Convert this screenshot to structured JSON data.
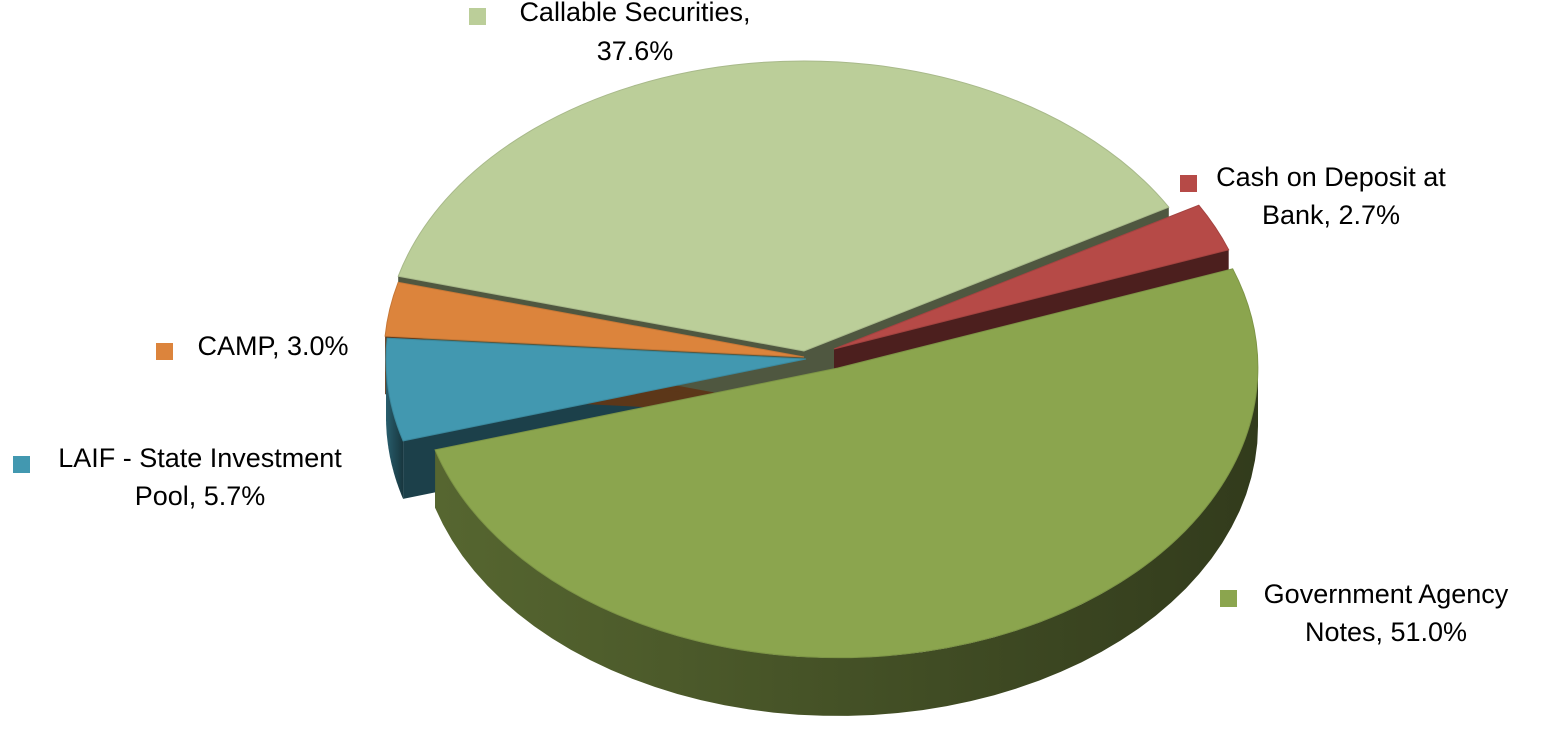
{
  "chart_data": {
    "type": "pie",
    "title": "",
    "slices": [
      {
        "label": "Government Agency Notes",
        "value": 51.0,
        "value_text": "51.0%",
        "color": "#8BA54E",
        "label_lines": [
          "Government Agency",
          "Notes, 51.0%"
        ]
      },
      {
        "label": "LAIF - State Investment Pool",
        "value": 5.7,
        "value_text": "5.7%",
        "color": "#4298B0",
        "label_lines": [
          "LAIF - State Investment",
          "Pool, 5.7%"
        ]
      },
      {
        "label": "CAMP",
        "value": 3.0,
        "value_text": "3.0%",
        "color": "#DC843C",
        "label_lines": [
          "CAMP, 3.0%"
        ]
      },
      {
        "label": "Callable Securities",
        "value": 37.6,
        "value_text": "37.6%",
        "color": "#BBCE99",
        "label_lines": [
          "Callable Securities,",
          "37.6%"
        ]
      },
      {
        "label": "Cash on Deposit at Bank",
        "value": 2.7,
        "value_text": "2.7%",
        "color": "#B64A47",
        "label_lines": [
          "Cash on Deposit at",
          "Bank, 2.7%"
        ]
      }
    ],
    "style": "3d-exploded",
    "legend": "none",
    "data_labels": "category-name-and-percent-with-legend-key"
  }
}
